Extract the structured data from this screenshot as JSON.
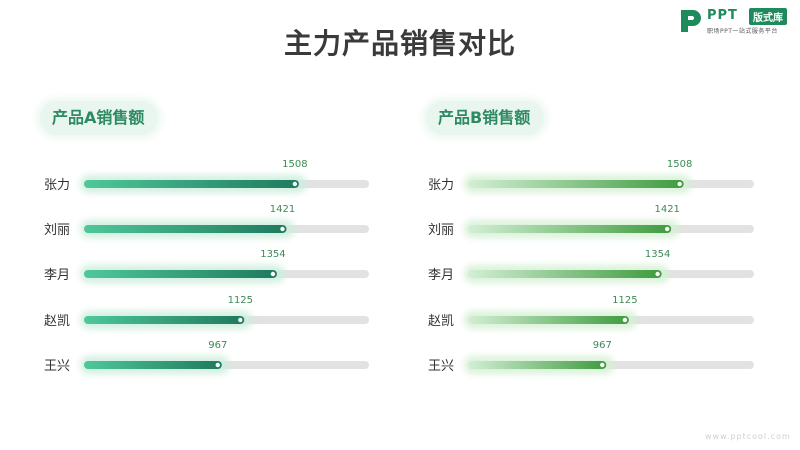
{
  "title": "主力产品销售对比",
  "logo": {
    "brand": "PPT",
    "badge": "版式库",
    "subtitle": "职场PPT一站式服务平台"
  },
  "watermark": "www.pptcool.com",
  "colors": {
    "a_start": "#4fc79b",
    "a_end": "#1f7a5e",
    "b_start": "#d3efd4",
    "b_end": "#3f9b3f",
    "track": "#e2e2e2",
    "value_text": "#3d8a56"
  },
  "chart_data": [
    {
      "type": "bar",
      "title": "产品A销售额",
      "categories": [
        "张力",
        "刘丽",
        "李月",
        "赵凯",
        "王兴"
      ],
      "values": [
        1508,
        1421,
        1354,
        1125,
        967
      ],
      "xlim": [
        0,
        2000
      ],
      "grid": false
    },
    {
      "type": "bar",
      "title": "产品B销售额",
      "categories": [
        "张力",
        "刘丽",
        "李月",
        "赵凯",
        "王兴"
      ],
      "values": [
        1508,
        1421,
        1354,
        1125,
        967
      ],
      "xlim": [
        0,
        2000
      ],
      "grid": false
    }
  ]
}
